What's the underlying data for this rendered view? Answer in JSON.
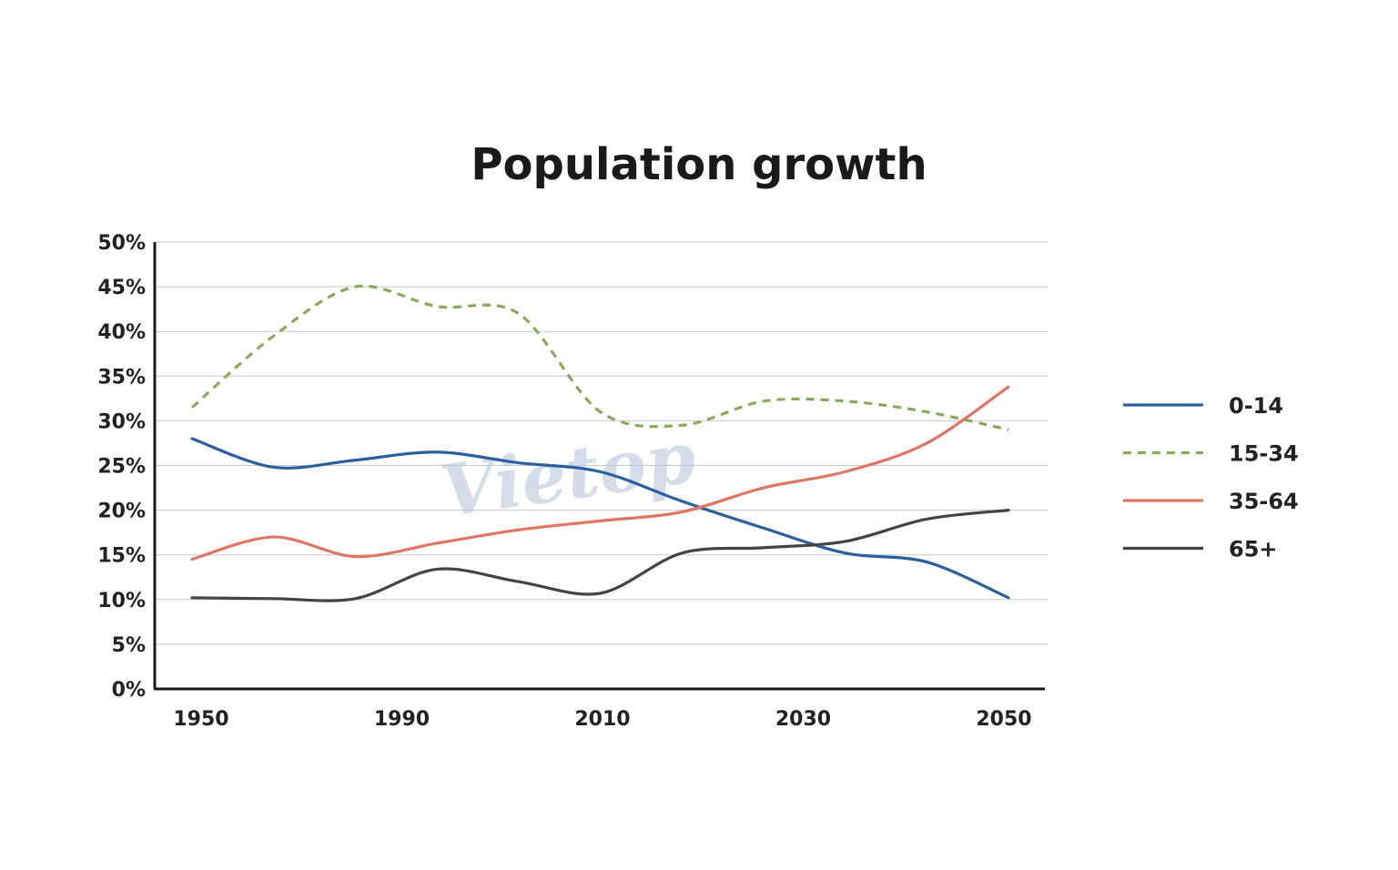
{
  "chart_data": {
    "type": "line",
    "title": "Population growth",
    "xlabel": "",
    "ylabel": "",
    "x_tick_labels": [
      "1950",
      "1990",
      "2010",
      "2030",
      "2050"
    ],
    "y_tick_labels": [
      "0%",
      "5%",
      "10%",
      "15%",
      "20%",
      "25%",
      "30%",
      "35%",
      "40%",
      "45%",
      "50%"
    ],
    "ylim": [
      0,
      50
    ],
    "grid": "horizontal",
    "legend_position": "right",
    "x_points": [
      "1950",
      "1960",
      "1970",
      "1980",
      "1990",
      "2000",
      "2010",
      "2020",
      "2030",
      "2040",
      "2050"
    ],
    "series": [
      {
        "name": "0-14",
        "color": "#2a5fa0",
        "dash": "solid",
        "values": [
          28,
          24.8,
          25.6,
          26.5,
          25.3,
          24.3,
          21,
          18,
          15.2,
          14.2,
          10.2
        ]
      },
      {
        "name": "15-34",
        "color": "#8aaa5a",
        "dash": "dashed",
        "values": [
          31.5,
          39.5,
          45,
          42.8,
          42,
          31,
          29.5,
          32.2,
          32.2,
          31,
          29
        ]
      },
      {
        "name": "35-64",
        "color": "#e07563",
        "dash": "solid",
        "values": [
          14.5,
          17,
          14.8,
          16.3,
          17.8,
          18.8,
          19.8,
          22.5,
          24.3,
          27.5,
          33.8
        ]
      },
      {
        "name": "65+",
        "color": "#444444",
        "dash": "solid",
        "values": [
          10.2,
          10.1,
          10.1,
          13.4,
          12,
          10.7,
          15.2,
          15.8,
          16.5,
          19,
          20
        ]
      }
    ]
  },
  "watermark": "Vietop"
}
